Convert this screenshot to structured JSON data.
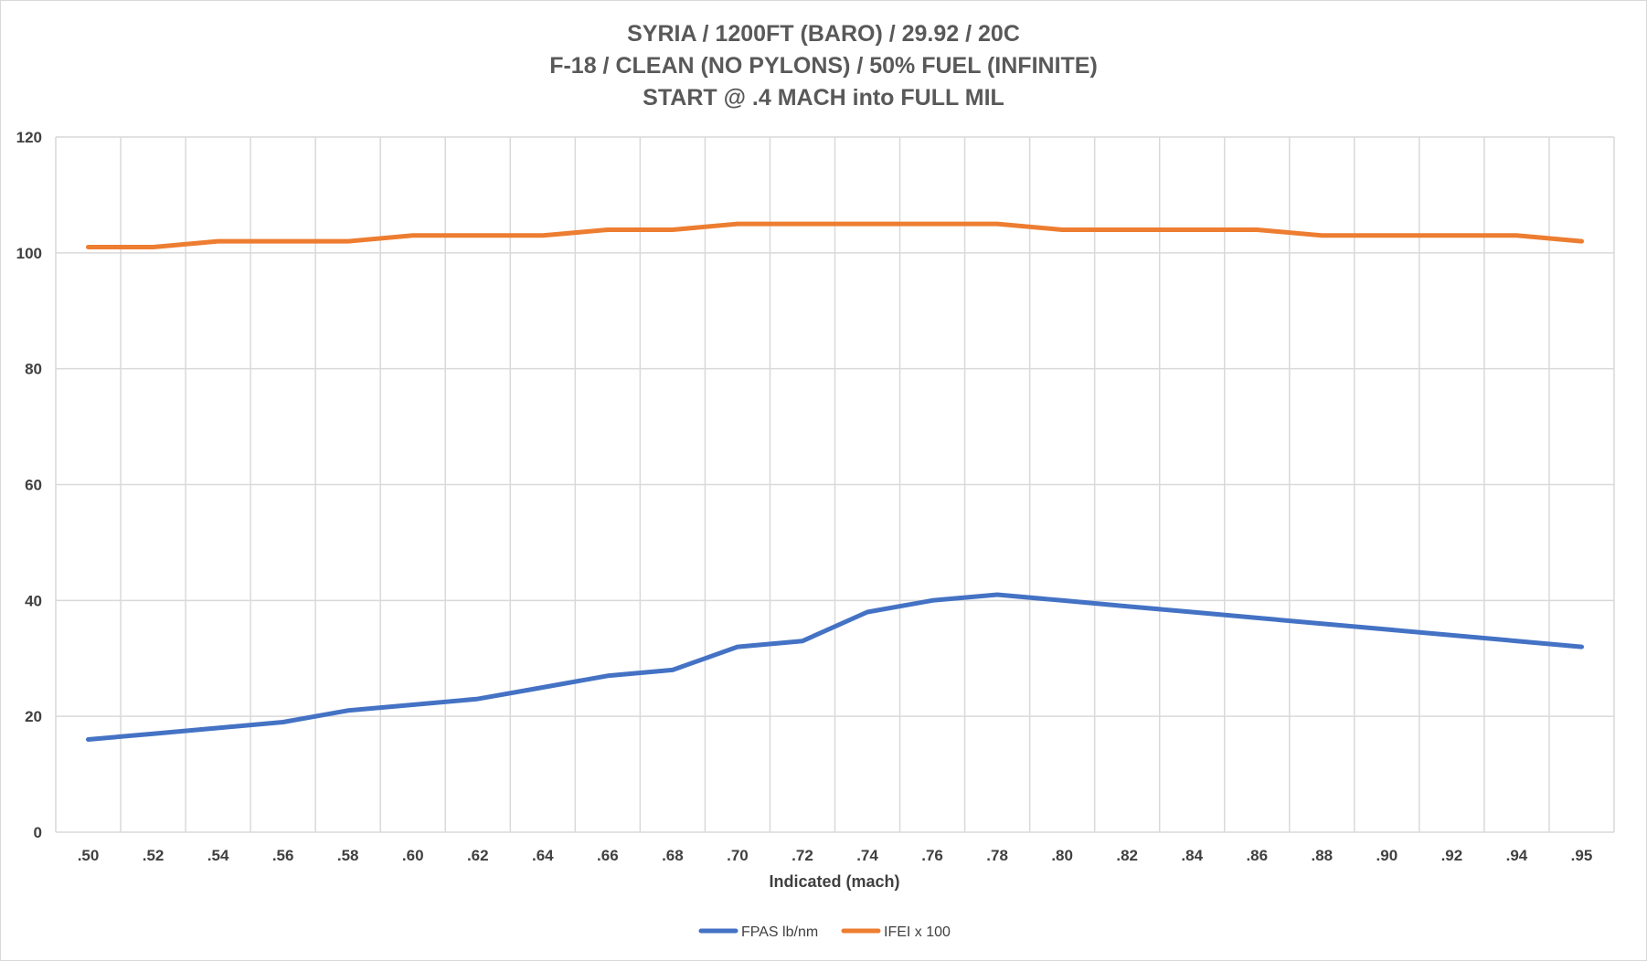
{
  "chart_data": {
    "type": "line",
    "title": [
      "SYRIA / 1200FT (BARO) / 29.92 / 20C",
      "F-18 / CLEAN (NO PYLONS) / 50% FUEL (INFINITE)",
      "START @ .4 MACH into FULL MIL"
    ],
    "xlabel": "Indicated (mach)",
    "ylabel": "",
    "categories": [
      ".50",
      ".52",
      ".54",
      ".56",
      ".58",
      ".60",
      ".62",
      ".64",
      ".66",
      ".68",
      ".70",
      ".72",
      ".74",
      ".76",
      ".78",
      ".80",
      ".82",
      ".84",
      ".86",
      ".88",
      ".90",
      ".92",
      ".94",
      ".95"
    ],
    "ylim": [
      0,
      120
    ],
    "yticks": [
      0,
      20,
      40,
      60,
      80,
      100,
      120
    ],
    "grid": true,
    "legend_position": "bottom",
    "series": [
      {
        "name": "FPAS lb/nm",
        "color": "#4472C4",
        "values": [
          16,
          17,
          18,
          19,
          21,
          22,
          23,
          25,
          27,
          28,
          32,
          33,
          38,
          40,
          41,
          40,
          39,
          38,
          37,
          36,
          35,
          34,
          33,
          32
        ]
      },
      {
        "name": "IFEI x 100",
        "color": "#ED7D31",
        "values": [
          101,
          101,
          102,
          102,
          102,
          103,
          103,
          103,
          104,
          104,
          105,
          105,
          105,
          105,
          105,
          104,
          104,
          104,
          104,
          103,
          103,
          103,
          103,
          102
        ]
      }
    ]
  }
}
